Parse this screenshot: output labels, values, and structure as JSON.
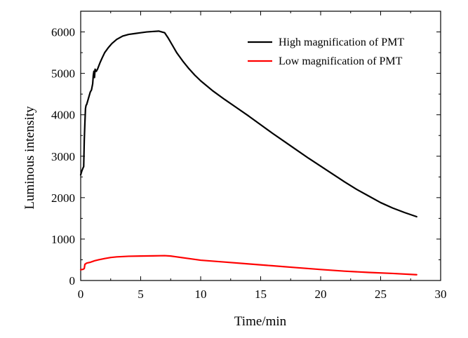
{
  "chart_data": {
    "type": "line",
    "xlabel": "Time/min",
    "ylabel": "Luminous intensity",
    "xlim": [
      0,
      30
    ],
    "ylim": [
      0,
      6500
    ],
    "x_ticks": [
      0,
      5,
      10,
      15,
      20,
      25,
      30
    ],
    "y_ticks": [
      0,
      1000,
      2000,
      3000,
      4000,
      5000,
      6000
    ],
    "grid": false,
    "legend_position": "top-right",
    "series": [
      {
        "name": "High magnification of PMT",
        "color": "#000000",
        "x": [
          0,
          0.1,
          0.2,
          0.25,
          0.3,
          0.35,
          0.4,
          0.45,
          0.5,
          0.6,
          0.7,
          0.8,
          0.9,
          1.0,
          1.05,
          1.1,
          1.15,
          1.2,
          1.3,
          1.4,
          1.6,
          1.8,
          2.0,
          2.3,
          2.6,
          3.0,
          3.5,
          4.0,
          4.5,
          5.0,
          5.5,
          6.0,
          6.5,
          7.0,
          7.3,
          7.6,
          8.0,
          8.5,
          9.0,
          9.5,
          10.0,
          11.0,
          12.0,
          13.0,
          14.0,
          15.0,
          16.0,
          17.0,
          18.0,
          19.0,
          20.0,
          21.0,
          22.0,
          23.0,
          24.0,
          25.0,
          26.0,
          27.0,
          28.0
        ],
        "y": [
          2550,
          2650,
          2720,
          2750,
          3400,
          3800,
          4150,
          4230,
          4250,
          4350,
          4450,
          4550,
          4600,
          4750,
          4950,
          5050,
          4900,
          5100,
          5050,
          5100,
          5250,
          5380,
          5500,
          5620,
          5720,
          5820,
          5900,
          5940,
          5960,
          5980,
          6000,
          6010,
          6020,
          5980,
          5850,
          5700,
          5500,
          5300,
          5120,
          4960,
          4820,
          4580,
          4370,
          4170,
          3970,
          3760,
          3550,
          3350,
          3150,
          2950,
          2760,
          2570,
          2380,
          2200,
          2040,
          1880,
          1750,
          1640,
          1540
        ]
      },
      {
        "name": "Low magnification of PMT",
        "color": "#ff0000",
        "x": [
          0,
          0.2,
          0.3,
          0.35,
          0.5,
          0.8,
          1.0,
          1.2,
          1.5,
          2.0,
          2.5,
          3.0,
          4.0,
          5.0,
          6.0,
          7.0,
          7.5,
          8.0,
          9.0,
          10.0,
          12.0,
          14.0,
          16.0,
          18.0,
          20.0,
          22.0,
          24.0,
          26.0,
          28.0
        ],
        "y": [
          260,
          270,
          290,
          390,
          420,
          440,
          460,
          480,
          500,
          530,
          555,
          570,
          585,
          590,
          595,
          600,
          590,
          570,
          530,
          490,
          445,
          400,
          355,
          310,
          265,
          225,
          195,
          170,
          140
        ]
      }
    ]
  }
}
